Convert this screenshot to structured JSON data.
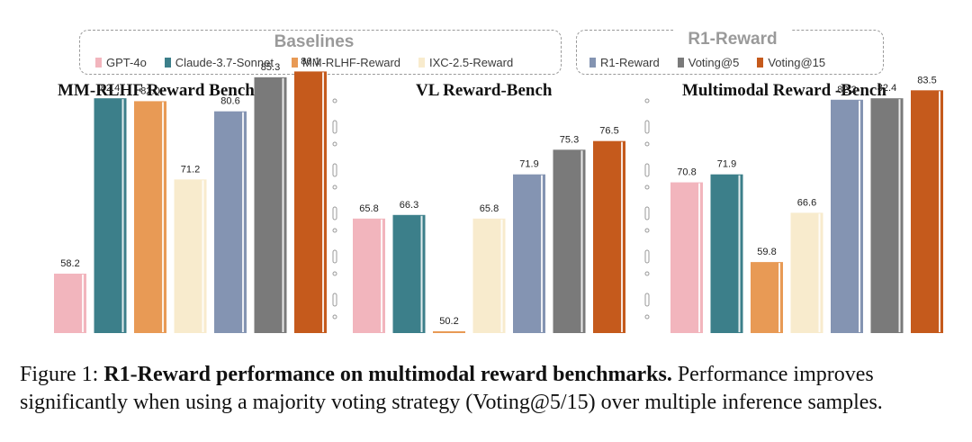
{
  "legend": {
    "baselines_title": "Baselines",
    "r1_title": "R1-Reward",
    "items": [
      {
        "label": "GPT-4o",
        "color": "#f2b5bd"
      },
      {
        "label": "Claude-3.7-Sonnet",
        "color": "#3c7f8a"
      },
      {
        "label": "MM-RLHF-Reward",
        "color": "#e89a55"
      },
      {
        "label": "IXC-2.5-Reward",
        "color": "#f8ebcd"
      },
      {
        "label": "R1-Reward",
        "color": "#8494b2"
      },
      {
        "label": "Voting@5",
        "color": "#7a7a7a"
      },
      {
        "label": "Voting@15",
        "color": "#c55a1c"
      }
    ]
  },
  "chart_data": [
    {
      "type": "bar",
      "title": "MM-RLHF Reward Bench",
      "categories": [
        "GPT-4o",
        "Claude-3.7-Sonnet",
        "MM-RLHF-Reward",
        "IXC-2.5-Reward",
        "R1-Reward",
        "Voting@5",
        "Voting@15"
      ],
      "values": [
        58.2,
        82.4,
        82.0,
        71.2,
        80.6,
        85.3,
        86.1
      ],
      "ylim": [
        50,
        88
      ]
    },
    {
      "type": "bar",
      "title": "VL Reward-Bench",
      "categories": [
        "GPT-4o",
        "Claude-3.7-Sonnet",
        "MM-RLHF-Reward",
        "IXC-2.5-Reward",
        "R1-Reward",
        "Voting@5",
        "Voting@15"
      ],
      "values": [
        65.8,
        66.3,
        50.2,
        65.8,
        71.9,
        75.3,
        76.5
      ],
      "ylim": [
        50,
        88
      ]
    },
    {
      "type": "bar",
      "title": "Multimodal Reward -Bench",
      "categories": [
        "GPT-4o",
        "Claude-3.7-Sonnet",
        "MM-RLHF-Reward",
        "IXC-2.5-Reward",
        "R1-Reward",
        "Voting@5",
        "Voting@15"
      ],
      "values": [
        70.8,
        71.9,
        59.8,
        66.6,
        82.2,
        82.4,
        83.5
      ],
      "ylim": [
        50,
        88
      ]
    }
  ],
  "caption": {
    "prefix": "Figure 1: ",
    "bold": "R1-Reward performance on multimodal reward benchmarks.",
    "rest": " Performance improves significantly when using a majority voting strategy (Voting@5/15) over multiple inference samples."
  }
}
